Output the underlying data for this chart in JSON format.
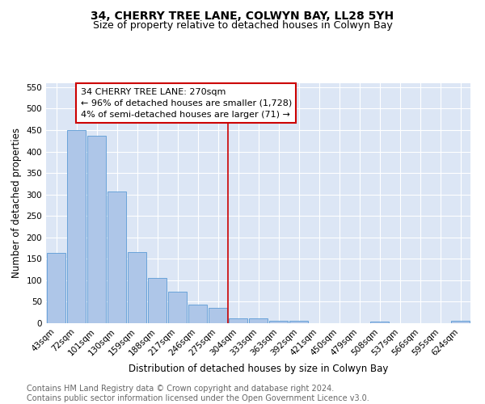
{
  "title": "34, CHERRY TREE LANE, COLWYN BAY, LL28 5YH",
  "subtitle": "Size of property relative to detached houses in Colwyn Bay",
  "xlabel": "Distribution of detached houses by size in Colwyn Bay",
  "ylabel": "Number of detached properties",
  "categories": [
    "43sqm",
    "72sqm",
    "101sqm",
    "130sqm",
    "159sqm",
    "188sqm",
    "217sqm",
    "246sqm",
    "275sqm",
    "304sqm",
    "333sqm",
    "363sqm",
    "392sqm",
    "421sqm",
    "450sqm",
    "479sqm",
    "508sqm",
    "537sqm",
    "566sqm",
    "595sqm",
    "624sqm"
  ],
  "values": [
    163,
    450,
    436,
    306,
    165,
    106,
    73,
    44,
    35,
    12,
    12,
    6,
    6,
    0,
    0,
    0,
    3,
    0,
    0,
    0,
    5
  ],
  "bar_color": "#aec6e8",
  "bar_edge_color": "#5b9bd5",
  "marker_index": 8.5,
  "marker_line_color": "#cc0000",
  "annotation_text": "34 CHERRY TREE LANE: 270sqm\n← 96% of detached houses are smaller (1,728)\n4% of semi-detached houses are larger (71) →",
  "annotation_box_color": "#ffffff",
  "annotation_box_edge_color": "#cc0000",
  "ylim": [
    0,
    560
  ],
  "yticks": [
    0,
    50,
    100,
    150,
    200,
    250,
    300,
    350,
    400,
    450,
    500,
    550
  ],
  "background_color": "#dce6f5",
  "footer_text": "Contains HM Land Registry data © Crown copyright and database right 2024.\nContains public sector information licensed under the Open Government Licence v3.0.",
  "title_fontsize": 10,
  "subtitle_fontsize": 9,
  "xlabel_fontsize": 8.5,
  "ylabel_fontsize": 8.5,
  "tick_fontsize": 7.5,
  "annotation_fontsize": 8,
  "footer_fontsize": 7
}
